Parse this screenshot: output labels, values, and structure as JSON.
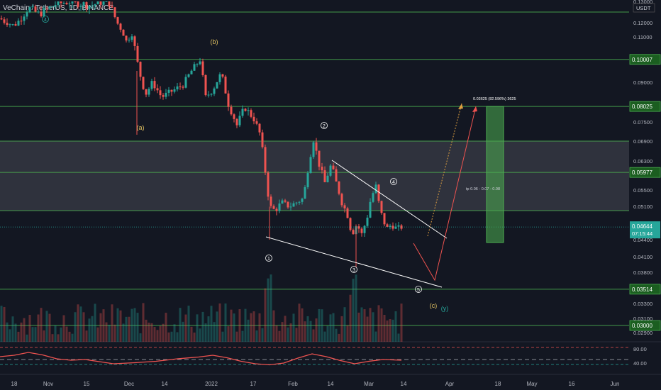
{
  "header": {
    "title": "VeChain / TetherUS, 1D, BINANCE"
  },
  "chart_data": {
    "type": "candlestick",
    "symbol": "VeChain / TetherUS",
    "interval": "1D",
    "exchange": "BINANCE",
    "currency_label": "USDT",
    "y_ticks": [
      "0.13000",
      "0.12000",
      "0.11000",
      "0.09000",
      "0.07500",
      "0.06900",
      "0.06300",
      "0.05500",
      "0.05100",
      "0.04400",
      "0.04100",
      "0.03800",
      "0.03300",
      "0.03100",
      "0.02900"
    ],
    "x_ticks": [
      "18",
      "Nov",
      "15",
      "Dec",
      "14",
      "2022",
      "17",
      "Feb",
      "14",
      "Mar",
      "14",
      "Apr",
      "18",
      "May",
      "16",
      "Jun"
    ],
    "levels": [
      {
        "price": 0.125,
        "label": ""
      },
      {
        "price": 0.10007,
        "label": "0.10007"
      },
      {
        "price": 0.08025,
        "label": "0.08025"
      },
      {
        "price": 0.069,
        "label": ""
      },
      {
        "price": 0.05977,
        "label": "0.05977"
      },
      {
        "price": 0.05,
        "label": ""
      },
      {
        "price": 0.03514,
        "label": "0.03514"
      },
      {
        "price": 0.03,
        "label": "0.03000"
      }
    ],
    "current_price": {
      "label": "0.04644",
      "sub": "07:15:44"
    },
    "zone": {
      "from": 0.05,
      "to": 0.069
    },
    "target_box": {
      "label_top": "0.03625 (82.596%) 3625",
      "label_mid": "tp 0.06 - 0.07 - 0.08"
    },
    "wave_labels": [
      "4",
      "(b)",
      "(a)",
      "2",
      "1",
      "3",
      "4",
      "5",
      "(c)",
      "(y)"
    ],
    "candles_summary": {
      "start_close": 0.122,
      "high_segment": 0.131,
      "drop_to": 0.108,
      "b_peak": 0.1,
      "a_low": 0.071,
      "decline_low": 0.044,
      "feb_peak": 0.0695,
      "mar_low": 0.039,
      "last_close": 0.04644
    },
    "projection": [
      0.0435,
      0.0355,
      0.0802
    ],
    "indicator": {
      "ticks": [
        "80.00",
        "40.00"
      ],
      "dashed_level": "50"
    }
  }
}
